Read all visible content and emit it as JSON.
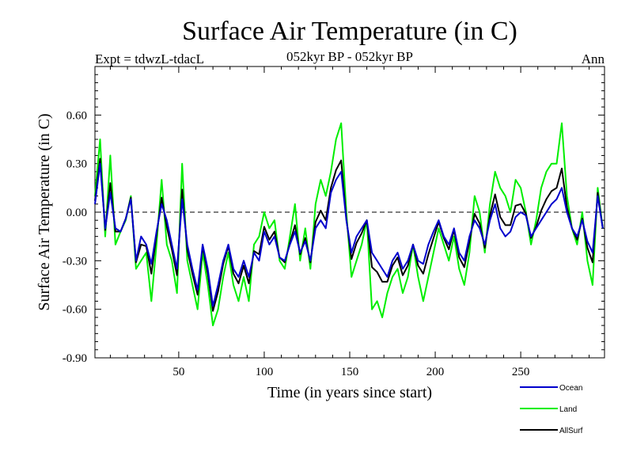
{
  "chart_data": {
    "type": "line",
    "title": "Surface Air Temperature (in C)",
    "subtitle_left": "Expt = tdwzL-tdacL",
    "subtitle_center": "052kyr BP - 052kyr BP",
    "subtitle_right": "Ann",
    "xlabel": "Time (in years since start)",
    "ylabel": "Surface Air Temperature (in C)",
    "xlim": [
      1,
      299
    ],
    "ylim": [
      -0.9,
      0.9
    ],
    "x_ticks": [
      50,
      100,
      150,
      200,
      250
    ],
    "x_tick_labels": [
      "50",
      "100",
      "150",
      "200",
      "250"
    ],
    "y_ticks": [
      -0.9,
      -0.6,
      -0.3,
      0.0,
      0.3,
      0.6
    ],
    "y_tick_labels": [
      "-0.90",
      "-0.60",
      "-0.30",
      "0.00",
      "0.30",
      "0.60"
    ],
    "reference_line": 0.0,
    "legend_position": "bottom-right",
    "series": [
      {
        "name": "Ocean",
        "color": "#0000cc",
        "x": [
          1,
          4,
          7,
          10,
          13,
          16,
          19,
          22,
          25,
          28,
          31,
          34,
          37,
          40,
          43,
          46,
          49,
          52,
          55,
          58,
          61,
          64,
          67,
          70,
          73,
          76,
          79,
          82,
          85,
          88,
          91,
          94,
          97,
          100,
          103,
          106,
          109,
          112,
          115,
          118,
          121,
          124,
          127,
          130,
          133,
          136,
          139,
          142,
          145,
          148,
          151,
          154,
          157,
          160,
          163,
          166,
          169,
          172,
          175,
          178,
          181,
          184,
          187,
          190,
          193,
          196,
          199,
          202,
          205,
          208,
          211,
          214,
          217,
          220,
          223,
          226,
          229,
          232,
          235,
          238,
          241,
          244,
          247,
          250,
          253,
          256,
          259,
          262,
          265,
          268,
          271,
          274,
          277,
          280,
          283,
          286,
          289,
          292,
          295,
          298
        ],
        "values": [
          0.05,
          0.3,
          -0.1,
          0.12,
          -0.1,
          -0.12,
          -0.04,
          0.08,
          -0.3,
          -0.15,
          -0.2,
          -0.32,
          -0.12,
          0.05,
          -0.05,
          -0.2,
          -0.35,
          0.08,
          -0.2,
          -0.35,
          -0.48,
          -0.2,
          -0.35,
          -0.58,
          -0.45,
          -0.3,
          -0.2,
          -0.35,
          -0.4,
          -0.3,
          -0.4,
          -0.25,
          -0.3,
          -0.12,
          -0.2,
          -0.15,
          -0.28,
          -0.3,
          -0.2,
          -0.12,
          -0.25,
          -0.18,
          -0.3,
          -0.1,
          -0.05,
          -0.1,
          0.12,
          0.2,
          0.25,
          -0.05,
          -0.25,
          -0.15,
          -0.1,
          -0.05,
          -0.25,
          -0.3,
          -0.35,
          -0.4,
          -0.3,
          -0.25,
          -0.35,
          -0.3,
          -0.2,
          -0.3,
          -0.32,
          -0.2,
          -0.12,
          -0.05,
          -0.15,
          -0.2,
          -0.1,
          -0.25,
          -0.3,
          -0.15,
          -0.05,
          -0.1,
          -0.2,
          -0.05,
          0.05,
          -0.1,
          -0.15,
          -0.12,
          -0.03,
          0.0,
          -0.02,
          -0.15,
          -0.1,
          -0.05,
          0.0,
          0.05,
          0.08,
          0.15,
          0.0,
          -0.1,
          -0.15,
          -0.05,
          -0.18,
          -0.25,
          0.1,
          -0.1
        ]
      },
      {
        "name": "Land",
        "color": "#00ee00",
        "x": [
          1,
          4,
          7,
          10,
          13,
          16,
          19,
          22,
          25,
          28,
          31,
          34,
          37,
          40,
          43,
          46,
          49,
          52,
          55,
          58,
          61,
          64,
          67,
          70,
          73,
          76,
          79,
          82,
          85,
          88,
          91,
          94,
          97,
          100,
          103,
          106,
          109,
          112,
          115,
          118,
          121,
          124,
          127,
          130,
          133,
          136,
          139,
          142,
          145,
          148,
          151,
          154,
          157,
          160,
          163,
          166,
          169,
          172,
          175,
          178,
          181,
          184,
          187,
          190,
          193,
          196,
          199,
          202,
          205,
          208,
          211,
          214,
          217,
          220,
          223,
          226,
          229,
          232,
          235,
          238,
          241,
          244,
          247,
          250,
          253,
          256,
          259,
          262,
          265,
          268,
          271,
          274,
          277,
          280,
          283,
          286,
          289,
          292,
          295,
          298
        ],
        "values": [
          0.1,
          0.45,
          -0.15,
          0.35,
          -0.2,
          -0.12,
          -0.05,
          0.1,
          -0.35,
          -0.3,
          -0.25,
          -0.55,
          -0.2,
          0.2,
          -0.2,
          -0.3,
          -0.5,
          0.3,
          -0.3,
          -0.45,
          -0.6,
          -0.25,
          -0.45,
          -0.7,
          -0.6,
          -0.4,
          -0.25,
          -0.45,
          -0.55,
          -0.4,
          -0.55,
          -0.2,
          -0.15,
          0.0,
          -0.1,
          -0.05,
          -0.3,
          -0.35,
          -0.15,
          0.05,
          -0.3,
          -0.1,
          -0.35,
          0.05,
          0.2,
          0.1,
          0.25,
          0.45,
          0.55,
          0.0,
          -0.4,
          -0.3,
          -0.2,
          -0.05,
          -0.6,
          -0.55,
          -0.65,
          -0.5,
          -0.4,
          -0.35,
          -0.5,
          -0.4,
          -0.2,
          -0.4,
          -0.55,
          -0.4,
          -0.25,
          -0.1,
          -0.2,
          -0.3,
          -0.15,
          -0.35,
          -0.45,
          -0.25,
          0.1,
          0.0,
          -0.25,
          0.05,
          0.25,
          0.15,
          0.1,
          0.0,
          0.2,
          0.15,
          0.0,
          -0.2,
          -0.05,
          0.15,
          0.25,
          0.3,
          0.3,
          0.55,
          0.1,
          -0.1,
          -0.2,
          0.0,
          -0.3,
          -0.45,
          0.15,
          -0.1
        ]
      },
      {
        "name": "AllSurf",
        "color": "#000000",
        "x": [
          1,
          4,
          7,
          10,
          13,
          16,
          19,
          22,
          25,
          28,
          31,
          34,
          37,
          40,
          43,
          46,
          49,
          52,
          55,
          58,
          61,
          64,
          67,
          70,
          73,
          76,
          79,
          82,
          85,
          88,
          91,
          94,
          97,
          100,
          103,
          106,
          109,
          112,
          115,
          118,
          121,
          124,
          127,
          130,
          133,
          136,
          139,
          142,
          145,
          148,
          151,
          154,
          157,
          160,
          163,
          166,
          169,
          172,
          175,
          178,
          181,
          184,
          187,
          190,
          193,
          196,
          199,
          202,
          205,
          208,
          211,
          214,
          217,
          220,
          223,
          226,
          229,
          232,
          235,
          238,
          241,
          244,
          247,
          250,
          253,
          256,
          259,
          262,
          265,
          268,
          271,
          274,
          277,
          280,
          283,
          286,
          289,
          292,
          295,
          298
        ],
        "values": [
          0.07,
          0.33,
          -0.11,
          0.18,
          -0.12,
          -0.12,
          -0.04,
          0.09,
          -0.31,
          -0.2,
          -0.21,
          -0.38,
          -0.14,
          0.09,
          -0.09,
          -0.23,
          -0.39,
          0.14,
          -0.23,
          -0.38,
          -0.51,
          -0.21,
          -0.38,
          -0.61,
          -0.49,
          -0.32,
          -0.21,
          -0.38,
          -0.44,
          -0.33,
          -0.44,
          -0.24,
          -0.26,
          -0.09,
          -0.17,
          -0.12,
          -0.28,
          -0.31,
          -0.19,
          -0.08,
          -0.26,
          -0.16,
          -0.31,
          -0.06,
          0.01,
          -0.05,
          0.15,
          0.26,
          0.32,
          -0.04,
          -0.29,
          -0.19,
          -0.13,
          -0.05,
          -0.34,
          -0.37,
          -0.43,
          -0.43,
          -0.33,
          -0.28,
          -0.39,
          -0.33,
          -0.2,
          -0.33,
          -0.38,
          -0.26,
          -0.16,
          -0.06,
          -0.16,
          -0.23,
          -0.11,
          -0.28,
          -0.34,
          -0.18,
          -0.01,
          -0.07,
          -0.22,
          -0.02,
          0.11,
          -0.03,
          -0.08,
          -0.08,
          0.04,
          0.05,
          -0.01,
          -0.16,
          -0.09,
          0.01,
          0.08,
          0.13,
          0.15,
          0.27,
          0.03,
          -0.1,
          -0.17,
          -0.04,
          -0.22,
          -0.31,
          0.12,
          -0.1
        ]
      }
    ]
  }
}
